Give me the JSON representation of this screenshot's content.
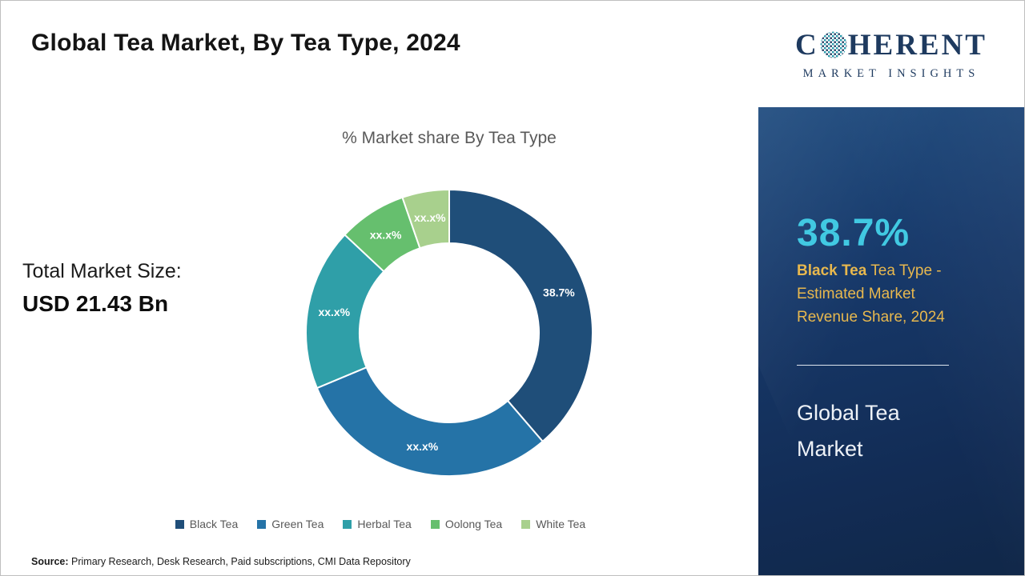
{
  "page": {
    "title": "Global Tea Market, By Tea Type, 2024",
    "source": {
      "label": "Source:",
      "text": " Primary Research, Desk Research, Paid subscriptions, CMI Data Repository"
    }
  },
  "left_panel": {
    "total_market_label": "Total Market Size:",
    "total_market_value": "USD 21.43 Bn"
  },
  "chart_data": {
    "type": "pie",
    "donut": true,
    "title": "% Market share By Tea Type",
    "categories": [
      "Black Tea",
      "Green Tea",
      "Herbal Tea",
      "Oolong Tea",
      "White Tea"
    ],
    "values": [
      38.7,
      30.0,
      18.3,
      7.7,
      5.3
    ],
    "display_labels": [
      "38.7%",
      "xx.x%",
      "xx.x%",
      "xx.x%",
      "xx.x%"
    ],
    "colors": [
      "#1f4e79",
      "#2573a7",
      "#2f9fa8",
      "#66bf6e",
      "#a8d08d"
    ],
    "legend_position": "bottom",
    "start_angle_deg": 0
  },
  "sidebar": {
    "logo": {
      "part1": "C",
      "part2": "HERENT",
      "subtext": "MARKET INSIGHTS"
    },
    "stat": {
      "value": "38.7%",
      "highlight": "Black Tea",
      "description": " Tea Type - Estimated Market Revenue Share, 2024"
    },
    "market_name": "Global Tea Market",
    "colors": {
      "accent_cyan": "#41c9e2",
      "accent_gold": "#e8b84e",
      "panel_blue": "#16386b"
    }
  }
}
